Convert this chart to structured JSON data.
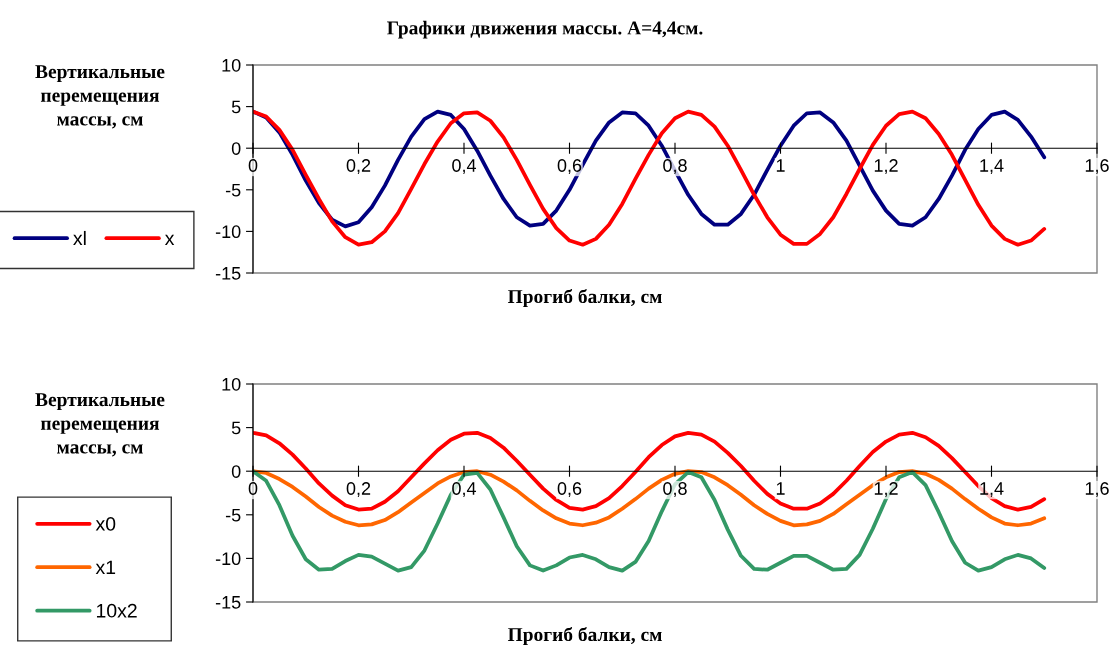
{
  "chart_data": [
    {
      "type": "line",
      "title": "Графики движения массы. А=4,4см.",
      "xlabel": "Прогиб балки, см",
      "ylabel": "Вертикальные\nперемещения\nмассы, см",
      "x": [
        0,
        0.025,
        0.05,
        0.075,
        0.1,
        0.125,
        0.15,
        0.175,
        0.2,
        0.225,
        0.25,
        0.275,
        0.3,
        0.325,
        0.35,
        0.375,
        0.4,
        0.425,
        0.45,
        0.475,
        0.5,
        0.525,
        0.55,
        0.575,
        0.6,
        0.625,
        0.65,
        0.675,
        0.7,
        0.725,
        0.75,
        0.775,
        0.8,
        0.825,
        0.85,
        0.875,
        0.9,
        0.925,
        0.95,
        0.975,
        1,
        1.025,
        1.05,
        1.075,
        1.1,
        1.125,
        1.15,
        1.175,
        1.2,
        1.225,
        1.25,
        1.275,
        1.3,
        1.325,
        1.35,
        1.375,
        1.4,
        1.425,
        1.45,
        1.475,
        1.5
      ],
      "series": [
        {
          "name": "xl",
          "color": "#000080",
          "values": [
            4.4,
            3.7,
            1.9,
            -0.8,
            -3.9,
            -6.6,
            -8.6,
            -9.4,
            -8.9,
            -7.1,
            -4.5,
            -1.4,
            1.4,
            3.5,
            4.4,
            4.0,
            2.3,
            -0.3,
            -3.3,
            -6.1,
            -8.3,
            -9.3,
            -9.1,
            -7.5,
            -5.0,
            -2.0,
            0.9,
            3.1,
            4.3,
            4.2,
            2.7,
            0.3,
            -2.7,
            -5.6,
            -7.9,
            -9.2,
            -9.2,
            -7.9,
            -5.6,
            -2.6,
            0.3,
            2.7,
            4.2,
            4.3,
            3.1,
            0.9,
            -2.1,
            -5.1,
            -7.5,
            -9.1,
            -9.3,
            -8.3,
            -6.1,
            -3.3,
            -0.2,
            2.3,
            4.0,
            4.4,
            3.4,
            1.4,
            -1.1
          ]
        },
        {
          "name": "x",
          "color": "#ff0000",
          "values": [
            4.4,
            3.8,
            2.2,
            -0.2,
            -3.2,
            -6.1,
            -8.8,
            -10.7,
            -11.6,
            -11.3,
            -10.0,
            -7.8,
            -4.9,
            -1.9,
            0.8,
            3.0,
            4.2,
            4.3,
            3.3,
            1.3,
            -1.4,
            -4.4,
            -7.3,
            -9.6,
            -11.1,
            -11.6,
            -10.9,
            -9.2,
            -6.7,
            -3.7,
            -0.8,
            1.8,
            3.6,
            4.4,
            4.0,
            2.6,
            0.3,
            -2.6,
            -5.6,
            -8.3,
            -10.4,
            -11.5,
            -11.5,
            -10.3,
            -8.3,
            -5.5,
            -2.5,
            0.4,
            2.7,
            4.1,
            4.4,
            3.6,
            1.7,
            -0.8,
            -3.8,
            -6.8,
            -9.3,
            -10.9,
            -11.6,
            -11.1,
            -9.7
          ]
        }
      ],
      "xlim": [
        0,
        1.6
      ],
      "xticks": [
        0,
        {
          "value": 0.2,
          "label": "0,2"
        },
        {
          "value": 0.4,
          "label": "0,4"
        },
        {
          "value": 0.6,
          "label": "0,6"
        },
        {
          "value": 0.8,
          "label": "0,8"
        },
        1,
        {
          "value": 1.2,
          "label": "1,2"
        },
        {
          "value": 1.4,
          "label": "1,4"
        },
        {
          "value": 1.6,
          "label": "1,6"
        }
      ],
      "ylim": [
        -15,
        10
      ],
      "yticks": [
        -15,
        -10,
        -5,
        0,
        5,
        10
      ],
      "grid": false,
      "legend": "left",
      "marker": "none",
      "line_style": "solid"
    },
    {
      "type": "line",
      "xlabel": "Прогиб балки, см",
      "ylabel": "Вертикальные\nперемещения\nмассы, см",
      "x": [
        0,
        0.025,
        0.05,
        0.075,
        0.1,
        0.125,
        0.15,
        0.175,
        0.2,
        0.225,
        0.25,
        0.275,
        0.3,
        0.325,
        0.35,
        0.375,
        0.4,
        0.425,
        0.45,
        0.475,
        0.5,
        0.525,
        0.55,
        0.575,
        0.6,
        0.625,
        0.65,
        0.675,
        0.7,
        0.725,
        0.75,
        0.775,
        0.8,
        0.825,
        0.85,
        0.875,
        0.9,
        0.925,
        0.95,
        0.975,
        1,
        1.025,
        1.05,
        1.075,
        1.1,
        1.125,
        1.15,
        1.175,
        1.2,
        1.225,
        1.25,
        1.275,
        1.3,
        1.325,
        1.35,
        1.375,
        1.4,
        1.425,
        1.45,
        1.475,
        1.5
      ],
      "series": [
        {
          "name": "x0",
          "color": "#ff0000",
          "values": [
            4.4,
            4.1,
            3.2,
            1.9,
            0.3,
            -1.4,
            -2.8,
            -3.9,
            -4.4,
            -4.3,
            -3.5,
            -2.3,
            -0.7,
            0.9,
            2.4,
            3.6,
            4.3,
            4.4,
            3.8,
            2.7,
            1.2,
            -0.4,
            -2.0,
            -3.3,
            -4.2,
            -4.4,
            -4.0,
            -3.1,
            -1.7,
            -0.1,
            1.6,
            3.0,
            4.0,
            4.4,
            4.2,
            3.4,
            2.1,
            0.6,
            -1.1,
            -2.6,
            -3.7,
            -4.3,
            -4.3,
            -3.7,
            -2.6,
            -1.1,
            0.6,
            2.2,
            3.4,
            4.2,
            4.4,
            3.9,
            2.9,
            1.5,
            -0.1,
            -1.7,
            -3.1,
            -4.0,
            -4.4,
            -4.1,
            -3.2
          ]
        },
        {
          "name": "x1",
          "color": "#ff6600",
          "values": [
            0,
            -0.2,
            -0.9,
            -1.8,
            -2.9,
            -4.1,
            -5.1,
            -5.8,
            -6.2,
            -6.1,
            -5.6,
            -4.7,
            -3.6,
            -2.5,
            -1.4,
            -0.6,
            -0.1,
            0,
            -0.4,
            -1.2,
            -2.2,
            -3.4,
            -4.5,
            -5.4,
            -6.0,
            -6.2,
            -5.9,
            -5.3,
            -4.3,
            -3.2,
            -2.0,
            -1.0,
            -0.3,
            0,
            -0.1,
            -0.7,
            -1.6,
            -2.7,
            -3.9,
            -4.9,
            -5.7,
            -6.2,
            -6.1,
            -5.7,
            -4.9,
            -3.8,
            -2.7,
            -1.6,
            -0.7,
            -0.1,
            0,
            -0.3,
            -1.0,
            -2.0,
            -3.2,
            -4.3,
            -5.3,
            -6.0,
            -6.2,
            -6.0,
            -5.4
          ]
        },
        {
          "name": "10x2",
          "color": "#339966",
          "values": [
            0,
            -1.1,
            -3.9,
            -7.4,
            -10.1,
            -11.3,
            -11.2,
            -10.3,
            -9.6,
            -9.8,
            -10.6,
            -11.4,
            -11.0,
            -9.1,
            -6.0,
            -2.7,
            -0.4,
            -0.2,
            -2.1,
            -5.3,
            -8.6,
            -10.8,
            -11.4,
            -10.8,
            -9.9,
            -9.6,
            -10.1,
            -11.0,
            -11.4,
            -10.4,
            -8.0,
            -4.6,
            -1.5,
            -0.1,
            -0.7,
            -3.3,
            -6.7,
            -9.7,
            -11.2,
            -11.3,
            -10.5,
            -9.7,
            -9.7,
            -10.5,
            -11.3,
            -11.2,
            -9.6,
            -6.6,
            -3.2,
            -0.7,
            -0.1,
            -1.6,
            -4.7,
            -8.0,
            -10.5,
            -11.4,
            -11.0,
            -10.1,
            -9.6,
            -10.0,
            -11.1
          ]
        }
      ],
      "xlim": [
        0,
        1.6
      ],
      "xticks": [
        0,
        {
          "value": 0.2,
          "label": "0,2"
        },
        {
          "value": 0.4,
          "label": "0,4"
        },
        {
          "value": 0.6,
          "label": "0,6"
        },
        {
          "value": 0.8,
          "label": "0,8"
        },
        1,
        {
          "value": 1.2,
          "label": "1,2"
        },
        {
          "value": 1.4,
          "label": "1,4"
        },
        {
          "value": 1.6,
          "label": "1,6"
        }
      ],
      "ylim": [
        -15,
        10
      ],
      "yticks": [
        -15,
        -10,
        -5,
        0,
        5,
        10
      ],
      "grid": false,
      "legend": "left",
      "marker": "none",
      "line_style": "solid"
    }
  ]
}
